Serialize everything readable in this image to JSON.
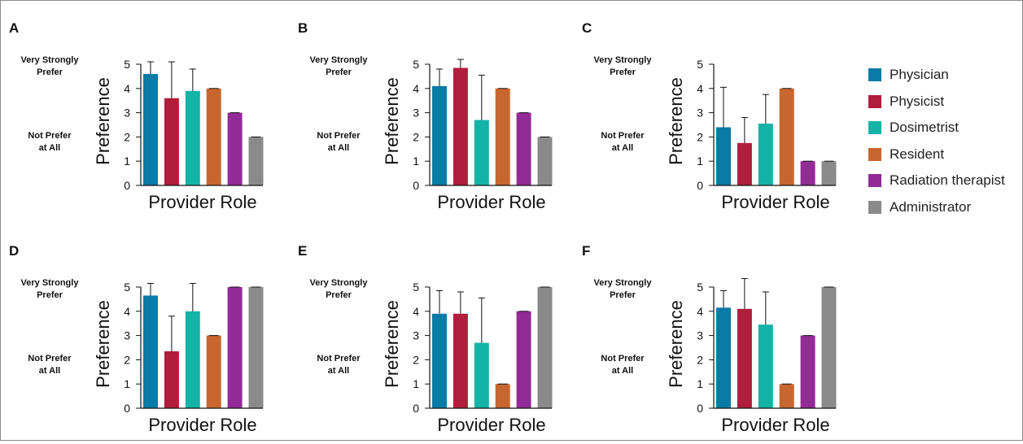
{
  "chart_data": [
    {
      "panel": "A",
      "type": "bar",
      "ylabel": "Preference",
      "xlabel": "Provider Role",
      "scale_top": "Very Strongly Prefer",
      "scale_bottom": "Not Prefer at All",
      "ylim": [
        0,
        5
      ],
      "yticks": [
        0,
        1,
        2,
        3,
        4,
        5
      ],
      "values": [
        4.6,
        3.6,
        3.9,
        4.0,
        3.0,
        2.0
      ],
      "err": [
        0.5,
        1.5,
        0.9,
        0.0,
        0.0,
        0.0
      ]
    },
    {
      "panel": "B",
      "type": "bar",
      "ylabel": "Preference",
      "xlabel": "Provider Role",
      "scale_top": "Very Strongly Prefer",
      "scale_bottom": "Not Prefer at All",
      "ylim": [
        0,
        5
      ],
      "yticks": [
        0,
        1,
        2,
        3,
        4,
        5
      ],
      "values": [
        4.1,
        4.85,
        2.7,
        4.0,
        3.0,
        2.0
      ],
      "err": [
        0.7,
        0.35,
        1.85,
        0.0,
        0.0,
        0.0
      ]
    },
    {
      "panel": "C",
      "type": "bar",
      "ylabel": "Preference",
      "xlabel": "Provider Role",
      "scale_top": "Very Strongly Prefer",
      "scale_bottom": "Not Prefer at All",
      "ylim": [
        0,
        5
      ],
      "yticks": [
        0,
        1,
        2,
        3,
        4,
        5
      ],
      "values": [
        2.4,
        1.75,
        2.55,
        4.0,
        1.0,
        1.0
      ],
      "err": [
        1.65,
        1.05,
        1.2,
        0.0,
        0.0,
        0.0
      ]
    },
    {
      "panel": "D",
      "type": "bar",
      "ylabel": "Preference",
      "xlabel": "Provider Role",
      "scale_top": "Very Strongly Prefer",
      "scale_bottom": "Not Prefer at All",
      "ylim": [
        0,
        5
      ],
      "yticks": [
        0,
        1,
        2,
        3,
        4,
        5
      ],
      "values": [
        4.65,
        2.35,
        4.0,
        3.0,
        5.0,
        5.0
      ],
      "err": [
        0.5,
        1.45,
        1.15,
        0.0,
        0.0,
        0.0
      ]
    },
    {
      "panel": "E",
      "type": "bar",
      "ylabel": "Preference",
      "xlabel": "Provider Role",
      "scale_top": "Very Strongly Prefer",
      "scale_bottom": "Not Prefer at All",
      "ylim": [
        0,
        5
      ],
      "yticks": [
        0,
        1,
        2,
        3,
        4,
        5
      ],
      "values": [
        3.9,
        3.9,
        2.7,
        1.0,
        4.0,
        5.0
      ],
      "err": [
        0.95,
        0.9,
        1.85,
        0.0,
        0.0,
        0.0
      ]
    },
    {
      "panel": "F",
      "type": "bar",
      "ylabel": "Preference",
      "xlabel": "Provider Role",
      "scale_top": "Very Strongly Prefer",
      "scale_bottom": "Not Prefer at All",
      "ylim": [
        0,
        5
      ],
      "yticks": [
        0,
        1,
        2,
        3,
        4,
        5
      ],
      "values": [
        4.15,
        4.1,
        3.45,
        1.0,
        3.0,
        5.0
      ],
      "err": [
        0.7,
        1.25,
        1.35,
        0.0,
        0.0,
        0.0
      ]
    }
  ],
  "legend": {
    "placement": "right",
    "items": [
      {
        "label": "Physician",
        "color": "#0a7aa6"
      },
      {
        "label": "Physicist",
        "color": "#b01e3c"
      },
      {
        "label": "Dosimetrist",
        "color": "#14b3a6"
      },
      {
        "label": "Resident",
        "color": "#c8662f"
      },
      {
        "label": "Radiation therapist",
        "color": "#922b96"
      },
      {
        "label": "Administrator",
        "color": "#8a8a8a"
      }
    ]
  }
}
